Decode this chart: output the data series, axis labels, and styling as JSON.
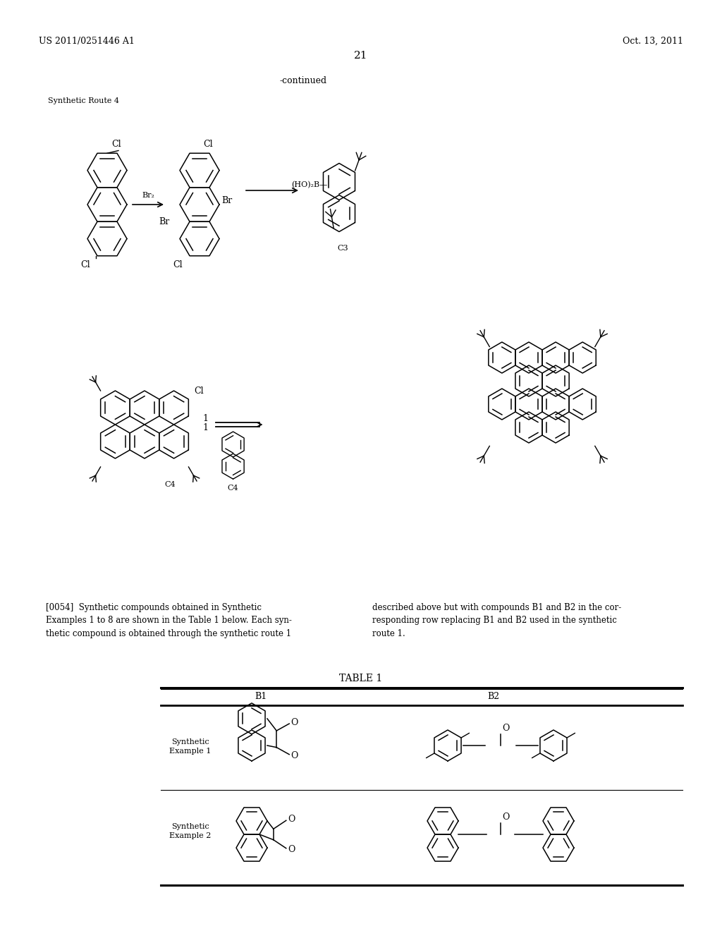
{
  "background_color": "#ffffff",
  "header_left": "US 2011/0251446 A1",
  "header_right": "Oct. 13, 2011",
  "page_number": "21",
  "continued_text": "-continued",
  "synthetic_route_label": "Synthetic Route 4",
  "paragraph_text_left": "[0054]  Synthetic compounds obtained in Synthetic\nExamples 1 to 8 are shown in the Table 1 below. Each syn-\nthetic compound is obtained through the synthetic route 1",
  "paragraph_text_right": "described above but with compounds B1 and B2 in the cor-\nresponding row replacing B1 and B2 used in the synthetic\nroute 1.",
  "table_title": "TABLE 1",
  "col_b1": "B1",
  "col_b2": "B2",
  "row1_label": "Synthetic\nExample 1",
  "row2_label": "Synthetic\nExample 2",
  "text_color": "#000000",
  "line_color": "#000000"
}
